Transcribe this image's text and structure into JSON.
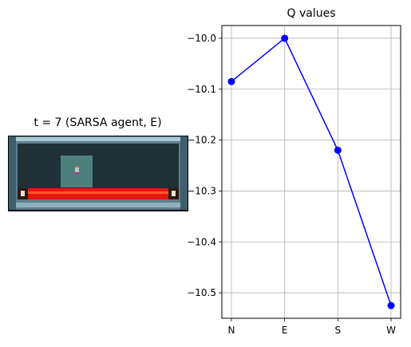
{
  "env_panel": {
    "title": "t = 7 (SARSA agent, E)"
  },
  "chart_data": {
    "type": "line",
    "title": "Q values",
    "categories": [
      "N",
      "E",
      "S",
      "W"
    ],
    "series": [
      {
        "values": [
          -10.085,
          -10.0,
          -10.22,
          -10.525
        ],
        "color": "#0000ff",
        "marker": "circle"
      }
    ],
    "ylim": [
      -10.55,
      -9.975
    ],
    "yticks": [
      -10.0,
      -10.1,
      -10.2,
      -10.3,
      -10.4,
      -10.5
    ],
    "ytick_labels": [
      "−10.0",
      "−10.1",
      "−10.2",
      "−10.3",
      "−10.4",
      "−10.5"
    ],
    "grid": true
  }
}
